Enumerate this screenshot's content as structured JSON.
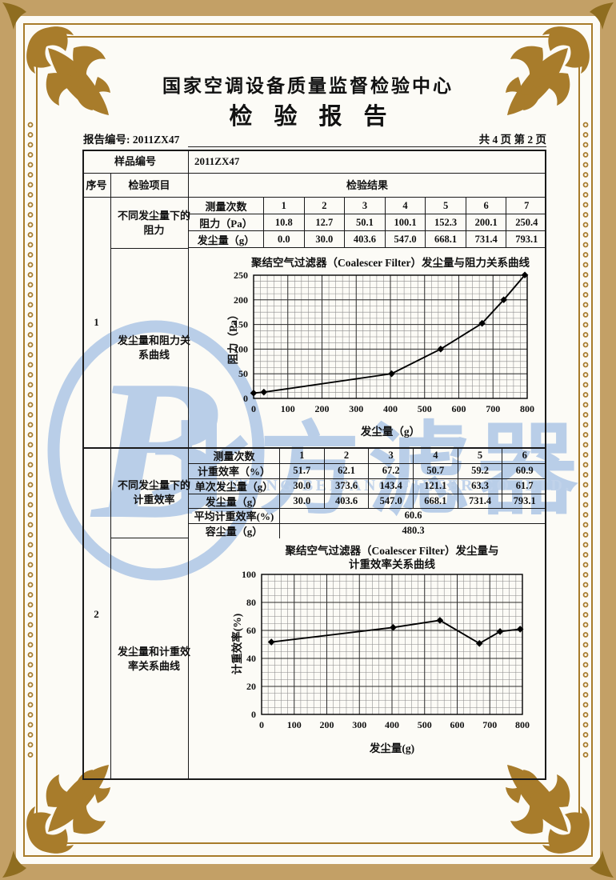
{
  "header": {
    "center_title": "国家空调设备质量监督检验中心",
    "report_title": "检验报告",
    "report_no": "报告编号: 2011ZX47",
    "pages": "共 4 页 第 2 页"
  },
  "watermark": {
    "cn": "北方滤器",
    "en": "XINXIANG BEIFANG FILTER CO.,LTD.",
    "color": "#b9cee8"
  },
  "table": {
    "sample_label": "样品编号",
    "sample_value": "2011ZX47",
    "col_seq": "序号",
    "col_item": "检验项目",
    "col_result": "检验结果",
    "sections": [
      {
        "seq": "1",
        "item1": "不同发尘量下的阻力",
        "item2": "发尘量和阻力关系曲线",
        "rows": [
          {
            "label": "测量次数",
            "values": [
              "1",
              "2",
              "3",
              "4",
              "5",
              "6",
              "7"
            ]
          },
          {
            "label": "阻力（Pa）",
            "values": [
              "10.8",
              "12.7",
              "50.1",
              "100.1",
              "152.3",
              "200.1",
              "250.4"
            ]
          },
          {
            "label": "发尘量（g）",
            "values": [
              "0.0",
              "30.0",
              "403.6",
              "547.0",
              "668.1",
              "731.4",
              "793.1"
            ]
          }
        ]
      },
      {
        "seq": "2",
        "item1": "不同发尘量下的计重效率",
        "item2": "发尘量和计重效率关系曲线",
        "rows": [
          {
            "label": "测量次数",
            "values": [
              "1",
              "2",
              "3",
              "4",
              "5",
              "6"
            ]
          },
          {
            "label": "计重效率（%）",
            "values": [
              "51.7",
              "62.1",
              "67.2",
              "50.7",
              "59.2",
              "60.9"
            ]
          },
          {
            "label": "单次发尘量（g）",
            "values": [
              "30.0",
              "373.6",
              "143.4",
              "121.1",
              "63.3",
              "61.7"
            ]
          },
          {
            "label": "发尘量（g）",
            "values": [
              "30.0",
              "403.6",
              "547.0",
              "668.1",
              "731.4",
              "793.1"
            ]
          },
          {
            "label": "平均计重效率(%)",
            "span": "60.6"
          },
          {
            "label": "容尘量（g）",
            "span": "480.3"
          }
        ]
      }
    ]
  },
  "chart_data": [
    {
      "type": "line",
      "title": "聚结空气过滤器（Coalescer Filter）发尘量与阻力关系曲线",
      "xlabel": "发尘量（g）",
      "ylabel": "阻力（Pa）",
      "xlim": [
        0,
        800
      ],
      "ylim": [
        0,
        250
      ],
      "xticks": [
        0,
        100,
        200,
        300,
        400,
        500,
        600,
        700,
        800
      ],
      "yticks": [
        0,
        50,
        100,
        150,
        200,
        250
      ],
      "x": [
        0,
        30,
        403.6,
        547.0,
        668.1,
        731.4,
        793.1
      ],
      "y": [
        10.8,
        12.7,
        50.1,
        100.1,
        152.3,
        200.1,
        250.4
      ],
      "grid": true,
      "legend": "none",
      "marker": "diamond",
      "line_color": "#000000"
    },
    {
      "type": "line",
      "title": "聚结空气过滤器（Coalescer Filter）发尘量与",
      "title2": "计重效率关系曲线",
      "xlabel": "发尘量(g)",
      "ylabel": "计重效率(%)",
      "xlim": [
        0,
        800
      ],
      "ylim": [
        0,
        100
      ],
      "xticks": [
        0,
        100,
        200,
        300,
        400,
        500,
        600,
        700,
        800
      ],
      "yticks": [
        0,
        20,
        40,
        60,
        80,
        100
      ],
      "x": [
        30,
        403.6,
        547.0,
        668.1,
        731.4,
        793.1
      ],
      "y": [
        51.7,
        62.1,
        67.2,
        50.7,
        59.2,
        60.9
      ],
      "grid": true,
      "legend": "none",
      "marker": "diamond",
      "line_color": "#000000"
    }
  ],
  "frame": {
    "gold": "#a87c2b",
    "tan_band": "#c3a066",
    "ink": "#1a1a1a"
  }
}
